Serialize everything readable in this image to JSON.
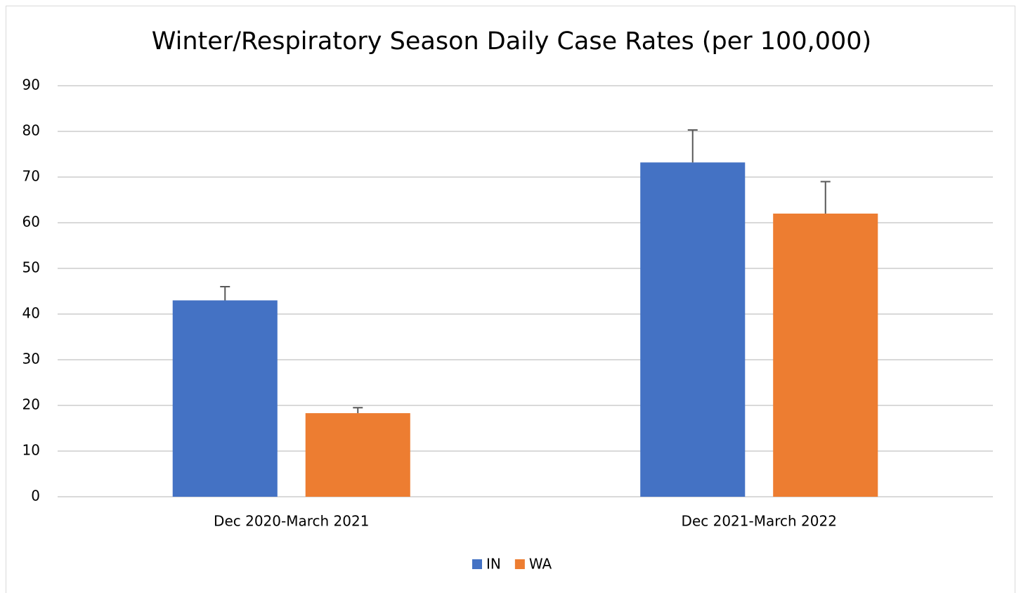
{
  "chart_data": {
    "type": "bar",
    "title": "Winter/Respiratory Season Daily Case Rates (per 100,000)",
    "categories": [
      "Dec 2020-March 2021",
      "Dec 2021-March 2022"
    ],
    "series": [
      {
        "name": "IN",
        "color": "#4472c4",
        "values": [
          43,
          73.2
        ],
        "errors": [
          3,
          7.1
        ]
      },
      {
        "name": "WA",
        "color": "#ed7d31",
        "values": [
          18.3,
          62
        ],
        "errors": [
          1.2,
          7
        ]
      }
    ],
    "ylim": [
      0,
      90
    ],
    "yticks": [
      0,
      10,
      20,
      30,
      40,
      50,
      60,
      70,
      80,
      90
    ],
    "grid": true,
    "legend": "bottom"
  }
}
